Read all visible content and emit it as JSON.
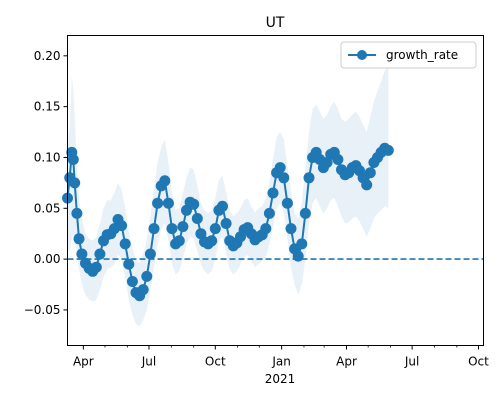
{
  "chart_data": {
    "type": "line",
    "title": "UT",
    "xlabel": "",
    "ylabel": "",
    "x_start": "2020-03-10",
    "x_end": "2021-10-08",
    "ylim": [
      -0.085,
      0.22
    ],
    "yticks": [
      -0.05,
      0.0,
      0.05,
      0.1,
      0.15,
      0.2
    ],
    "ytick_labels": [
      "−0.05",
      "0.00",
      "0.05",
      "0.10",
      "0.15",
      "0.20"
    ],
    "xticks": [
      {
        "date": "2020-04-01",
        "label": "Apr"
      },
      {
        "date": "2020-07-01",
        "label": "Jul"
      },
      {
        "date": "2020-10-01",
        "label": "Oct"
      },
      {
        "date": "2021-01-01",
        "label": "Jan"
      },
      {
        "date": "2021-04-01",
        "label": "Apr"
      },
      {
        "date": "2021-07-01",
        "label": "Jul"
      },
      {
        "date": "2021-10-01",
        "label": "Oct"
      }
    ],
    "year_label": "2021",
    "reference_line": {
      "y": 0.0,
      "style": "dashed"
    },
    "legend": {
      "position": "top-right",
      "entries": [
        "growth_rate"
      ]
    },
    "grid": false,
    "series": [
      {
        "name": "growth_rate",
        "color": "#1f77b4",
        "band_color": "#1f77b4",
        "points": [
          [
            "2020-03-10",
            0.06,
            0.005,
            0.11
          ],
          [
            "2020-03-13",
            0.08,
            0.01,
            0.13
          ],
          [
            "2020-03-16",
            0.105,
            0.02,
            0.18
          ],
          [
            "2020-03-18",
            0.098,
            0.025,
            0.165
          ],
          [
            "2020-03-20",
            0.075,
            0.02,
            0.14
          ],
          [
            "2020-03-23",
            0.045,
            0.005,
            0.09
          ],
          [
            "2020-03-26",
            0.02,
            -0.01,
            0.06
          ],
          [
            "2020-03-30",
            0.005,
            -0.025,
            0.04
          ],
          [
            "2020-04-04",
            -0.004,
            -0.035,
            0.025
          ],
          [
            "2020-04-09",
            -0.009,
            -0.04,
            0.02
          ],
          [
            "2020-04-14",
            -0.012,
            -0.042,
            0.018
          ],
          [
            "2020-04-19",
            -0.008,
            -0.04,
            0.022
          ],
          [
            "2020-04-24",
            0.005,
            -0.03,
            0.035
          ],
          [
            "2020-04-29",
            0.018,
            -0.018,
            0.05
          ],
          [
            "2020-05-04",
            0.024,
            -0.01,
            0.058
          ],
          [
            "2020-05-09",
            0.025,
            -0.008,
            0.058
          ],
          [
            "2020-05-14",
            0.03,
            -0.005,
            0.065
          ],
          [
            "2020-05-19",
            0.039,
            0.005,
            0.075
          ],
          [
            "2020-05-24",
            0.033,
            0.0,
            0.068
          ],
          [
            "2020-05-29",
            0.015,
            -0.018,
            0.05
          ],
          [
            "2020-06-03",
            -0.005,
            -0.04,
            0.028
          ],
          [
            "2020-06-08",
            -0.022,
            -0.055,
            0.01
          ],
          [
            "2020-06-13",
            -0.033,
            -0.064,
            0.0
          ],
          [
            "2020-06-18",
            -0.036,
            -0.066,
            -0.004
          ],
          [
            "2020-06-23",
            -0.03,
            -0.06,
            0.005
          ],
          [
            "2020-06-28",
            -0.017,
            -0.05,
            0.02
          ],
          [
            "2020-07-03",
            0.005,
            -0.03,
            0.042
          ],
          [
            "2020-07-08",
            0.03,
            -0.008,
            0.07
          ],
          [
            "2020-07-13",
            0.055,
            0.015,
            0.095
          ],
          [
            "2020-07-18",
            0.072,
            0.03,
            0.11
          ],
          [
            "2020-07-23",
            0.077,
            0.035,
            0.118
          ],
          [
            "2020-07-28",
            0.055,
            0.018,
            0.095
          ],
          [
            "2020-08-02",
            0.03,
            -0.005,
            0.065
          ],
          [
            "2020-08-07",
            0.015,
            -0.015,
            0.048
          ],
          [
            "2020-08-12",
            0.018,
            -0.012,
            0.05
          ],
          [
            "2020-08-17",
            0.032,
            0.0,
            0.065
          ],
          [
            "2020-08-22",
            0.048,
            0.015,
            0.08
          ],
          [
            "2020-08-27",
            0.056,
            0.022,
            0.09
          ],
          [
            "2020-09-01",
            0.054,
            0.02,
            0.088
          ],
          [
            "2020-09-06",
            0.04,
            0.008,
            0.072
          ],
          [
            "2020-09-11",
            0.025,
            -0.005,
            0.055
          ],
          [
            "2020-09-16",
            0.017,
            -0.012,
            0.048
          ],
          [
            "2020-09-21",
            0.015,
            -0.015,
            0.045
          ],
          [
            "2020-09-26",
            0.018,
            -0.012,
            0.048
          ],
          [
            "2020-10-01",
            0.03,
            0.0,
            0.06
          ],
          [
            "2020-10-06",
            0.048,
            0.018,
            0.078
          ],
          [
            "2020-10-11",
            0.052,
            0.022,
            0.082
          ],
          [
            "2020-10-16",
            0.035,
            0.005,
            0.066
          ],
          [
            "2020-10-21",
            0.018,
            -0.01,
            0.048
          ],
          [
            "2020-10-26",
            0.013,
            -0.015,
            0.042
          ],
          [
            "2020-10-31",
            0.016,
            -0.012,
            0.045
          ],
          [
            "2020-11-05",
            0.022,
            -0.005,
            0.05
          ],
          [
            "2020-11-10",
            0.029,
            0.002,
            0.058
          ],
          [
            "2020-11-15",
            0.031,
            0.004,
            0.06
          ],
          [
            "2020-11-20",
            0.025,
            -0.002,
            0.052
          ],
          [
            "2020-11-25",
            0.019,
            -0.008,
            0.046
          ],
          [
            "2020-11-30",
            0.022,
            -0.005,
            0.05
          ],
          [
            "2020-12-05",
            0.024,
            -0.002,
            0.052
          ],
          [
            "2020-12-10",
            0.03,
            0.002,
            0.06
          ],
          [
            "2020-12-15",
            0.045,
            0.015,
            0.075
          ],
          [
            "2020-12-20",
            0.065,
            0.032,
            0.098
          ],
          [
            "2020-12-25",
            0.085,
            0.05,
            0.12
          ],
          [
            "2020-12-30",
            0.09,
            0.055,
            0.125
          ],
          [
            "2021-01-04",
            0.08,
            0.045,
            0.118
          ],
          [
            "2021-01-09",
            0.055,
            0.02,
            0.092
          ],
          [
            "2021-01-14",
            0.03,
            -0.008,
            0.068
          ],
          [
            "2021-01-19",
            0.01,
            -0.025,
            0.045
          ],
          [
            "2021-01-24",
            0.003,
            -0.035,
            0.04
          ],
          [
            "2021-01-29",
            0.015,
            -0.025,
            0.055
          ],
          [
            "2021-02-03",
            0.045,
            0.0,
            0.09
          ],
          [
            "2021-02-08",
            0.08,
            0.035,
            0.125
          ],
          [
            "2021-02-13",
            0.1,
            0.055,
            0.148
          ],
          [
            "2021-02-18",
            0.105,
            0.06,
            0.152
          ],
          [
            "2021-02-23",
            0.098,
            0.052,
            0.145
          ],
          [
            "2021-02-28",
            0.09,
            0.045,
            0.138
          ],
          [
            "2021-03-05",
            0.095,
            0.05,
            0.142
          ],
          [
            "2021-03-10",
            0.103,
            0.058,
            0.15
          ],
          [
            "2021-03-15",
            0.105,
            0.06,
            0.155
          ],
          [
            "2021-03-20",
            0.098,
            0.052,
            0.148
          ],
          [
            "2021-03-25",
            0.088,
            0.042,
            0.138
          ],
          [
            "2021-03-30",
            0.083,
            0.035,
            0.135
          ],
          [
            "2021-04-04",
            0.085,
            0.036,
            0.138
          ],
          [
            "2021-04-09",
            0.09,
            0.04,
            0.142
          ],
          [
            "2021-04-14",
            0.092,
            0.042,
            0.145
          ],
          [
            "2021-04-19",
            0.087,
            0.037,
            0.14
          ],
          [
            "2021-04-24",
            0.08,
            0.03,
            0.132
          ],
          [
            "2021-04-29",
            0.073,
            0.022,
            0.125
          ],
          [
            "2021-05-04",
            0.085,
            0.03,
            0.14
          ],
          [
            "2021-05-09",
            0.095,
            0.04,
            0.155
          ],
          [
            "2021-05-14",
            0.1,
            0.045,
            0.165
          ],
          [
            "2021-05-19",
            0.105,
            0.048,
            0.175
          ],
          [
            "2021-05-24",
            0.109,
            0.052,
            0.185
          ],
          [
            "2021-05-29",
            0.107,
            0.05,
            0.19
          ]
        ]
      }
    ]
  }
}
